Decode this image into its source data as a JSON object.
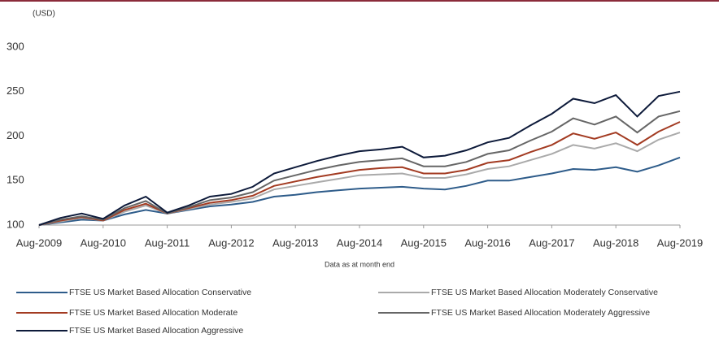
{
  "chart_data": {
    "type": "line",
    "y_label": "(USD)",
    "x_label": "Data as at month end",
    "categories": [
      "Aug-2009",
      null,
      null,
      "Aug-2010",
      null,
      null,
      "Aug-2011",
      null,
      null,
      "Aug-2012",
      null,
      null,
      "Aug-2013",
      null,
      null,
      "Aug-2014",
      null,
      null,
      "Aug-2015",
      null,
      null,
      "Aug-2016",
      null,
      null,
      "Aug-2017",
      null,
      null,
      "Aug-2018",
      null,
      null,
      "Aug-2019"
    ],
    "ylim": [
      100,
      300
    ],
    "yticks": [
      100,
      150,
      200,
      250,
      300
    ],
    "series": [
      {
        "name": "FTSE US Market Based Allocation Conservative",
        "color": "#2e5c8a",
        "values": [
          100,
          103,
          106,
          105,
          112,
          117,
          113,
          117,
          121,
          123,
          126,
          132,
          134,
          137,
          139,
          141,
          142,
          143,
          141,
          140,
          144,
          150,
          150,
          154,
          158,
          163,
          162,
          165,
          160,
          167,
          176
        ]
      },
      {
        "name": "FTSE US Market Based Allocation Moderately Conservative",
        "color": "#aaaaaa",
        "values": [
          100,
          104,
          108,
          105,
          115,
          122,
          113,
          118,
          123,
          126,
          130,
          140,
          144,
          148,
          152,
          156,
          157,
          158,
          153,
          153,
          157,
          163,
          166,
          173,
          180,
          190,
          186,
          192,
          183,
          196,
          204
        ]
      },
      {
        "name": "FTSE US Market Based Allocation Moderate",
        "color": "#a33b22",
        "values": [
          100,
          105,
          109,
          105,
          117,
          124,
          113,
          119,
          125,
          128,
          133,
          144,
          149,
          154,
          158,
          162,
          164,
          165,
          158,
          158,
          162,
          170,
          173,
          182,
          190,
          203,
          197,
          204,
          190,
          205,
          216
        ]
      },
      {
        "name": "FTSE US Market Based Allocation Moderately Aggressive",
        "color": "#666666",
        "values": [
          100,
          106,
          110,
          106,
          119,
          127,
          113,
          120,
          128,
          131,
          137,
          150,
          156,
          162,
          167,
          171,
          173,
          175,
          166,
          166,
          171,
          180,
          184,
          195,
          205,
          220,
          213,
          222,
          204,
          222,
          228
        ]
      },
      {
        "name": "FTSE US Market Based Allocation Aggressive",
        "color": "#0d1a3a",
        "values": [
          100,
          108,
          113,
          107,
          122,
          132,
          114,
          122,
          132,
          135,
          143,
          158,
          165,
          172,
          178,
          183,
          185,
          188,
          176,
          178,
          184,
          193,
          198,
          212,
          225,
          242,
          237,
          246,
          222,
          245,
          250
        ]
      }
    ]
  }
}
